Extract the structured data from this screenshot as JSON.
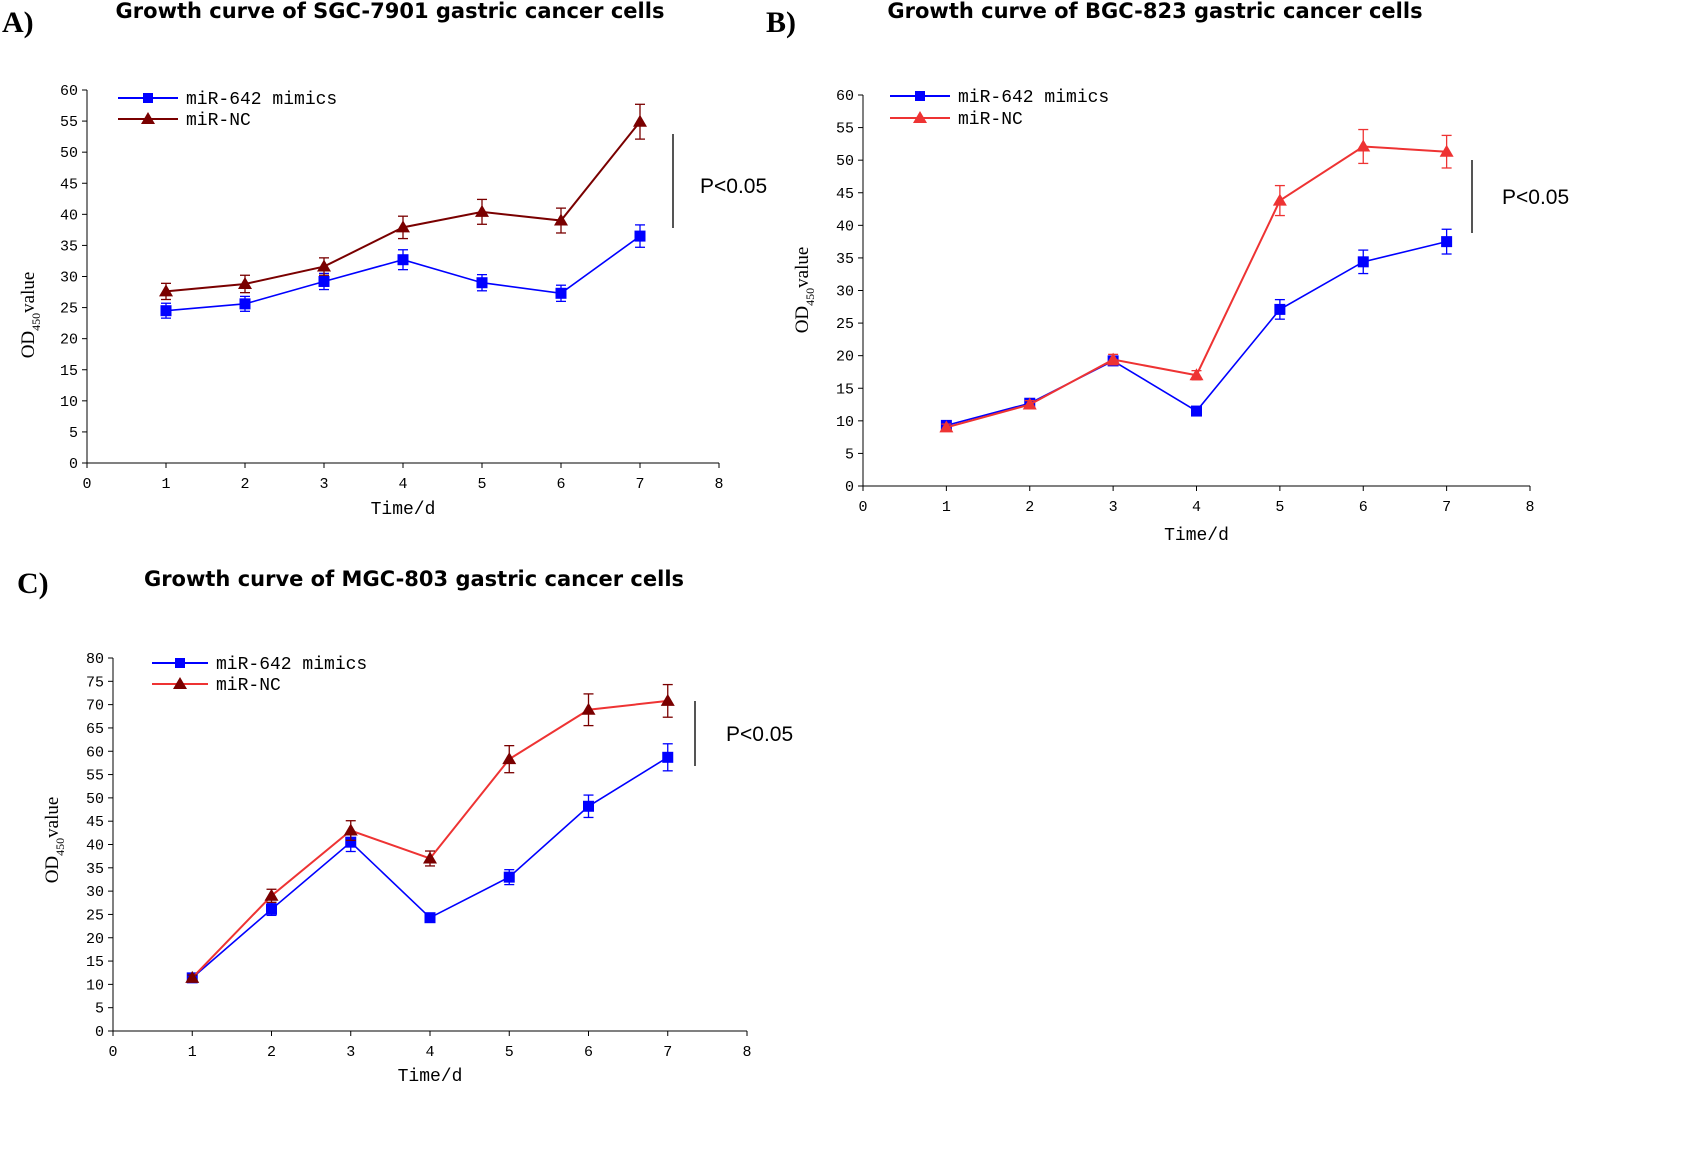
{
  "chart_data": [
    {
      "type": "line",
      "panel_label": "A)",
      "title": "Growth curve of SGC-7901 gastric cancer cells",
      "xlabel": "Time/d",
      "ylabel": {
        "main": "OD",
        "sub": "450",
        "suffix": "value"
      },
      "xlim": [
        0,
        8
      ],
      "ylim": [
        0,
        60
      ],
      "xticks": [
        0,
        1,
        2,
        3,
        4,
        5,
        6,
        7,
        8
      ],
      "yticks": [
        0,
        5,
        10,
        15,
        20,
        25,
        30,
        35,
        40,
        45,
        50,
        55,
        60
      ],
      "x": [
        1,
        2,
        3,
        4,
        5,
        6,
        7
      ],
      "legend": "top-left",
      "annotation": "P<0.05",
      "series": [
        {
          "name": "miR-642 mimics",
          "marker": "square",
          "color": "#0000ff",
          "values": [
            24.5,
            25.6,
            29.2,
            32.7,
            29.0,
            27.3,
            36.5
          ],
          "errors": [
            1.2,
            1.2,
            1.3,
            1.6,
            1.3,
            1.3,
            1.8
          ]
        },
        {
          "name": "miR-NC",
          "marker": "triangle",
          "color": "#7a0000",
          "values": [
            27.6,
            28.8,
            31.6,
            37.9,
            40.4,
            39.0,
            54.9
          ],
          "errors": [
            1.3,
            1.4,
            1.4,
            1.8,
            2.0,
            2.0,
            2.8
          ]
        }
      ]
    },
    {
      "type": "line",
      "panel_label": "B)",
      "title": "Growth curve of BGC-823 gastric cancer cells",
      "xlabel": "Time/d",
      "ylabel": {
        "main": "OD",
        "sub": "450",
        "suffix": "value"
      },
      "xlim": [
        0,
        8
      ],
      "ylim": [
        0,
        60
      ],
      "xticks": [
        0,
        1,
        2,
        3,
        4,
        5,
        6,
        7,
        8
      ],
      "yticks": [
        0,
        5,
        10,
        15,
        20,
        25,
        30,
        35,
        40,
        45,
        50,
        55,
        60
      ],
      "x": [
        1,
        2,
        3,
        4,
        5,
        6,
        7
      ],
      "legend": "top-left",
      "annotation": "P<0.05",
      "series": [
        {
          "name": "miR-642 mimics",
          "marker": "square",
          "color": "#0000ff",
          "values": [
            9.3,
            12.7,
            19.2,
            11.5,
            27.1,
            34.4,
            37.5
          ],
          "errors": [
            0.5,
            0.6,
            0.7,
            0.6,
            1.5,
            1.8,
            1.9
          ]
        },
        {
          "name": "miR-NC",
          "marker": "triangle",
          "color": "#ee3333",
          "values": [
            9.0,
            12.5,
            19.4,
            17.0,
            43.8,
            52.1,
            51.3
          ],
          "errors": [
            0.5,
            0.6,
            0.8,
            0.7,
            2.3,
            2.6,
            2.5
          ]
        }
      ]
    },
    {
      "type": "line",
      "panel_label": "C)",
      "title": "Growth curve of MGC-803 gastric cancer cells",
      "xlabel": "Time/d",
      "ylabel": {
        "main": "OD",
        "sub": "450",
        "suffix": "value"
      },
      "xlim": [
        0,
        8
      ],
      "ylim": [
        0,
        80
      ],
      "xticks": [
        0,
        1,
        2,
        3,
        4,
        5,
        6,
        7,
        8
      ],
      "yticks": [
        0,
        5,
        10,
        15,
        20,
        25,
        30,
        35,
        40,
        45,
        50,
        55,
        60,
        65,
        70,
        75,
        80
      ],
      "x": [
        1,
        2,
        3,
        4,
        5,
        6,
        7
      ],
      "legend": "top-left",
      "annotation": "P<0.05",
      "series": [
        {
          "name": "miR-642 mimics",
          "marker": "square",
          "color": "#0000ff",
          "values": [
            11.4,
            26.1,
            40.5,
            24.3,
            33.0,
            48.2,
            58.7
          ],
          "errors": [
            0.6,
            1.3,
            2.0,
            0.8,
            1.6,
            2.4,
            2.9
          ]
        },
        {
          "name": "miR-NC",
          "marker": "triangle",
          "color": "#ee3333",
          "marker_color": "#7a0000",
          "values": [
            11.4,
            29.0,
            43.0,
            37.0,
            58.3,
            68.9,
            70.8
          ],
          "errors": [
            0.6,
            1.4,
            2.1,
            1.6,
            2.9,
            3.4,
            3.5
          ]
        }
      ]
    }
  ]
}
